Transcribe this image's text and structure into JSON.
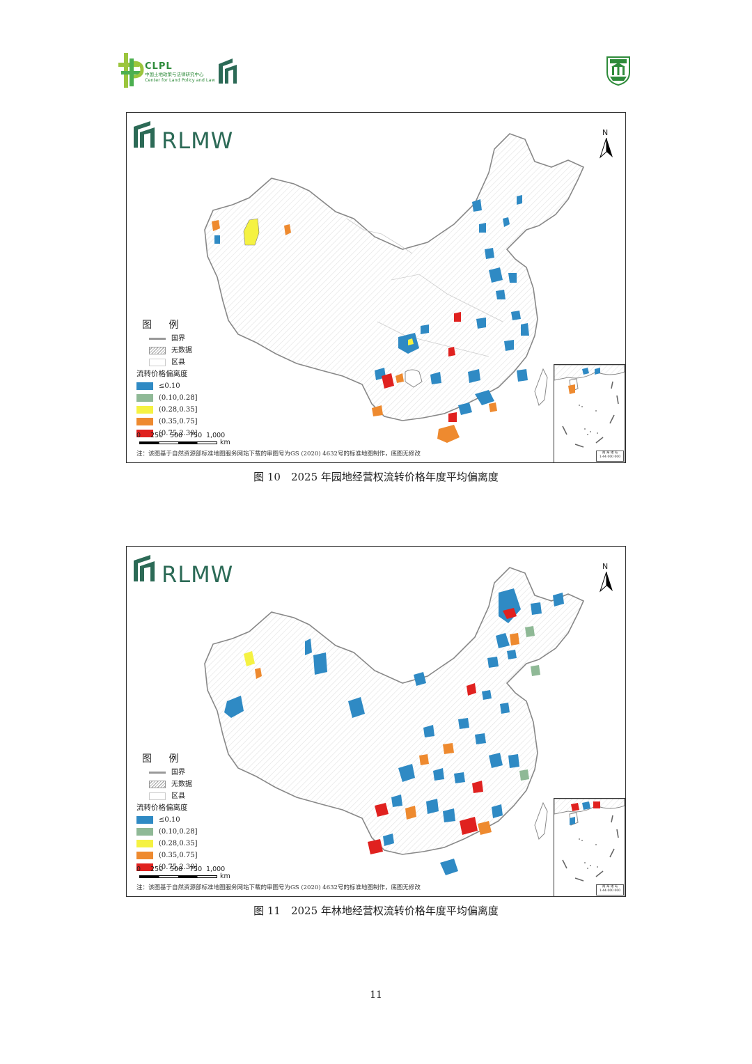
{
  "header": {
    "left_logo_title": "CLPL",
    "left_logo_cn": "中国土地政策与法律研究中心",
    "left_logo_en": "Center for Land Policy and Law",
    "right_logo": "university-seal"
  },
  "colors": {
    "class_le_0_10": "#2f8ac4",
    "class_0_10_0_28": "#8fb996",
    "class_0_28_0_35": "#f5f242",
    "class_0_35_0_75": "#ee8a2f",
    "class_0_75_2_30": "#e0211f",
    "brand_green": "#2c6a56"
  },
  "figures": [
    {
      "brand": "RLMW",
      "north": "N",
      "legend": {
        "title": "图 例",
        "items": [
          "国界",
          "无数据",
          "区县"
        ],
        "category_title": "流转价格偏离度",
        "classes": [
          "≤0.10",
          "(0.10,0.28]",
          "(0.28,0.35]",
          "(0.35,0.75]",
          "(0.75,2.30]"
        ]
      },
      "scale": {
        "ticks": [
          "0",
          "250",
          "500",
          "750",
          "1,000"
        ],
        "unit": "km"
      },
      "note": "注：该图基于自然资源部标准地图服务网站下载的审图号为GS (2020) 4632号的标准地图制作，底图无修改",
      "inset_label": [
        "南 海 诸 岛",
        "1:44 000 000"
      ],
      "caption": "图 10　2025 年园地经营权流转价格年度平均偏离度"
    },
    {
      "brand": "RLMW",
      "north": "N",
      "legend": {
        "title": "图 例",
        "items": [
          "国界",
          "无数据",
          "区县"
        ],
        "category_title": "流转价格偏离度",
        "classes": [
          "≤0.10",
          "(0.10,0.28]",
          "(0.28,0.35]",
          "(0.35,0.75]",
          "(0.75,2.30]"
        ]
      },
      "scale": {
        "ticks": [
          "0",
          "250",
          "500",
          "750",
          "1,000"
        ],
        "unit": "km"
      },
      "note": "注：该图基于自然资源部标准地图服务网站下载的审图号为GS (2020) 4632号的标准地图制作，底图无修改",
      "inset_label": [
        "南 海 诸 岛",
        "1:44 000 000"
      ],
      "caption": "图 11　2025 年林地经营权流转价格年度平均偏离度"
    }
  ],
  "page_number": "11"
}
